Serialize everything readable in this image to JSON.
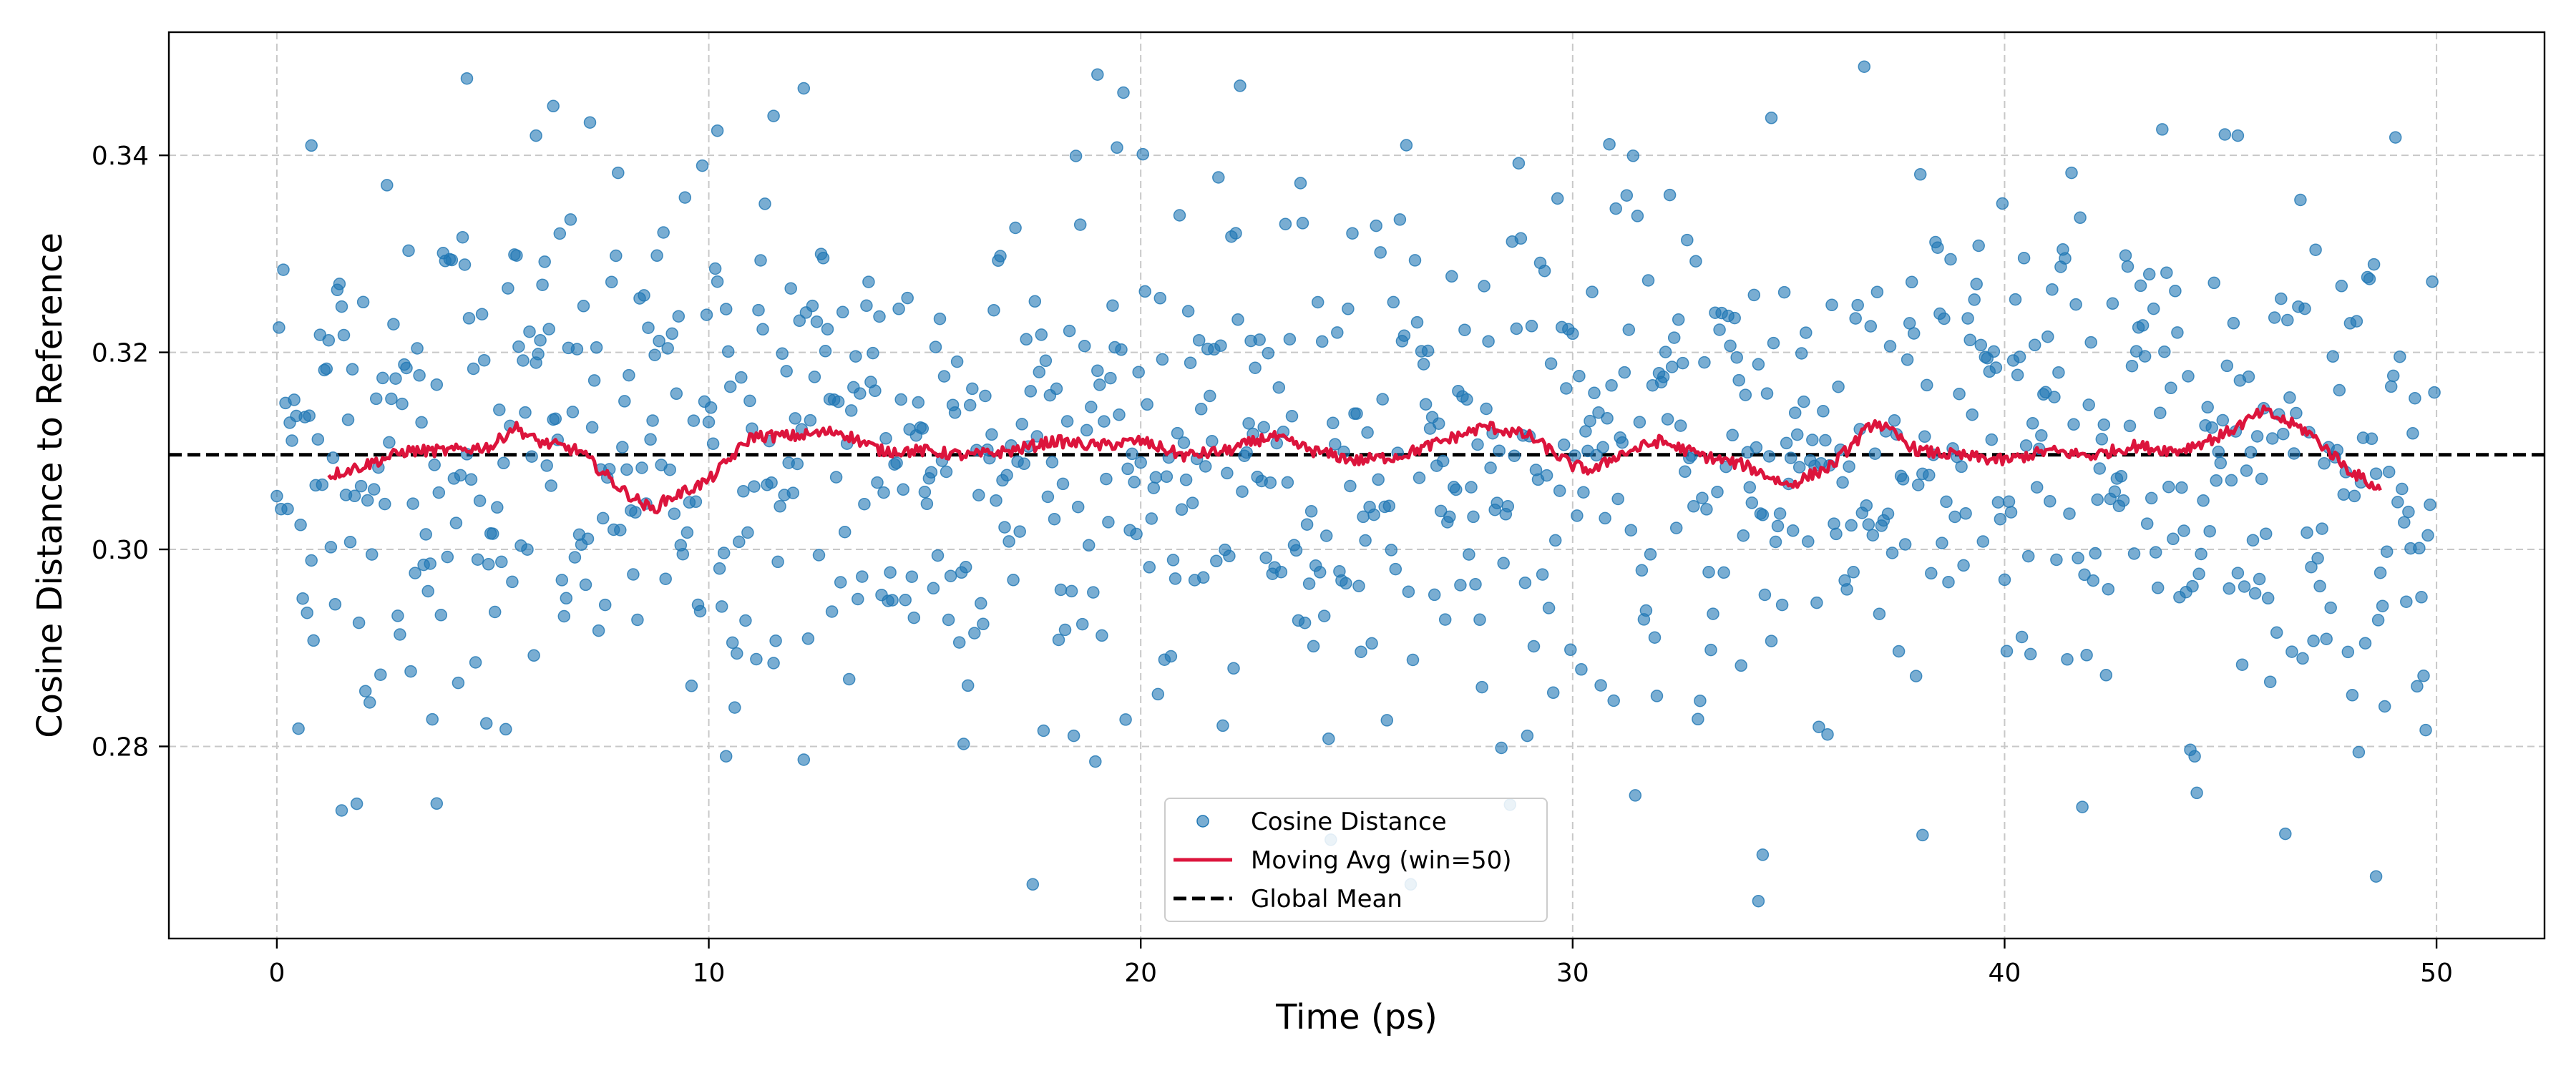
{
  "chart_data": {
    "type": "scatter",
    "xlabel": "Time (ps)",
    "ylabel": "Cosine Distance to Reference",
    "xlim": [
      -2.5,
      52.5
    ],
    "ylim": [
      0.2605,
      0.3525
    ],
    "x_ticks": [
      0,
      10,
      20,
      30,
      40,
      50
    ],
    "y_ticks": [
      0.28,
      0.3,
      0.32,
      0.34
    ],
    "x_tick_labels": [
      "0",
      "10",
      "20",
      "30",
      "40",
      "50"
    ],
    "y_tick_labels": [
      "0.28",
      "0.30",
      "0.32",
      "0.34"
    ],
    "grid": true,
    "legend_position": "bottom-center",
    "legend": [
      {
        "label": "Cosine Distance",
        "style": "marker"
      },
      {
        "label": "Moving Avg (win=50)",
        "style": "line"
      },
      {
        "label": "Global Mean",
        "style": "dashed"
      }
    ],
    "colors": {
      "scatter": "#1f77b4",
      "moving_avg": "#dc143c",
      "global_mean": "#000000"
    },
    "global_mean": 0.3096,
    "scatter_notable_points": [
      {
        "x": 0.8,
        "y": 0.341
      },
      {
        "x": 1.5,
        "y": 0.2735
      },
      {
        "x": 3.7,
        "y": 0.2742
      },
      {
        "x": 4.4,
        "y": 0.3478
      },
      {
        "x": 6.0,
        "y": 0.342
      },
      {
        "x": 6.4,
        "y": 0.345
      },
      {
        "x": 10.2,
        "y": 0.3425
      },
      {
        "x": 10.4,
        "y": 0.279
      },
      {
        "x": 11.5,
        "y": 0.344
      },
      {
        "x": 12.2,
        "y": 0.3468
      },
      {
        "x": 19.0,
        "y": 0.3482
      },
      {
        "x": 34.3,
        "y": 0.2643
      },
      {
        "x": 34.4,
        "y": 0.269
      },
      {
        "x": 34.6,
        "y": 0.3438
      },
      {
        "x": 38.1,
        "y": 0.271
      },
      {
        "x": 45.4,
        "y": 0.342
      },
      {
        "x": 48.6,
        "y": 0.2668
      }
    ],
    "moving_avg_series": {
      "name": "Moving Avg (win=50)",
      "x": [
        1.2,
        2.0,
        3.0,
        4.0,
        5.0,
        5.5,
        6.0,
        7.0,
        8.0,
        8.7,
        9.0,
        10.0,
        11.0,
        12.0,
        13.0,
        14.0,
        15.0,
        16.0,
        17.0,
        18.0,
        19.0,
        20.0,
        21.0,
        22.0,
        23.0,
        24.0,
        25.0,
        26.0,
        27.0,
        28.0,
        29.0,
        30.0,
        30.5,
        31.0,
        32.0,
        33.0,
        34.0,
        35.0,
        36.0,
        37.0,
        38.0,
        39.0,
        40.0,
        41.0,
        42.0,
        43.0,
        44.0,
        45.0,
        46.0,
        47.0,
        48.0,
        48.7
      ],
      "values": [
        0.3075,
        0.3085,
        0.31,
        0.31,
        0.3105,
        0.3125,
        0.311,
        0.31,
        0.306,
        0.304,
        0.305,
        0.307,
        0.3115,
        0.3115,
        0.312,
        0.31,
        0.31,
        0.3095,
        0.31,
        0.311,
        0.3105,
        0.311,
        0.3095,
        0.31,
        0.3115,
        0.31,
        0.309,
        0.3095,
        0.311,
        0.3125,
        0.3115,
        0.3085,
        0.308,
        0.3095,
        0.311,
        0.3095,
        0.3085,
        0.3065,
        0.3085,
        0.313,
        0.31,
        0.3095,
        0.309,
        0.31,
        0.3095,
        0.3105,
        0.31,
        0.3115,
        0.314,
        0.312,
        0.308,
        0.306
      ]
    }
  }
}
